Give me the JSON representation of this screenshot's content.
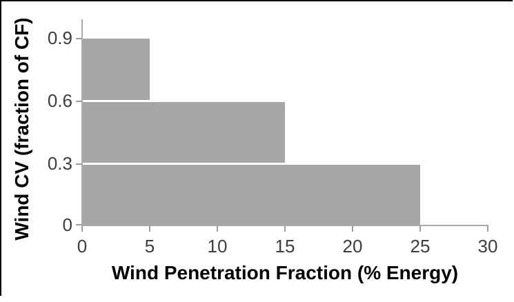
{
  "figure": {
    "x_axis_title": "Wind Penetration Fraction (% Energy)",
    "y_axis_title": "Wind CV (fraction of CF)",
    "x_tick_labels": [
      "0",
      "5",
      "10",
      "15",
      "20",
      "25",
      "30"
    ],
    "y_tick_labels": [
      "0.9",
      "0.6",
      "0.3",
      "0"
    ]
  },
  "chart_data": {
    "type": "bar",
    "subtype": "step-area",
    "title": "",
    "xlabel": "Wind Penetration Fraction (% Energy)",
    "ylabel": "Wind CV (fraction of CF)",
    "x_ticks": [
      0,
      5,
      10,
      15,
      20,
      25,
      30
    ],
    "y_ticks": [
      0,
      0.3,
      0.6,
      0.9
    ],
    "xlim": [
      0,
      30
    ],
    "ylim": [
      0,
      1.0
    ],
    "steps": [
      {
        "x_start": 0,
        "x_end": 5,
        "value": 0.9
      },
      {
        "x_start": 5,
        "x_end": 15,
        "value": 0.6
      },
      {
        "x_start": 15,
        "x_end": 25,
        "value": 0.3
      }
    ],
    "bar_color": "#a6a6a6",
    "axis_color": "#a9a9a9",
    "grid": false,
    "legend": false
  }
}
